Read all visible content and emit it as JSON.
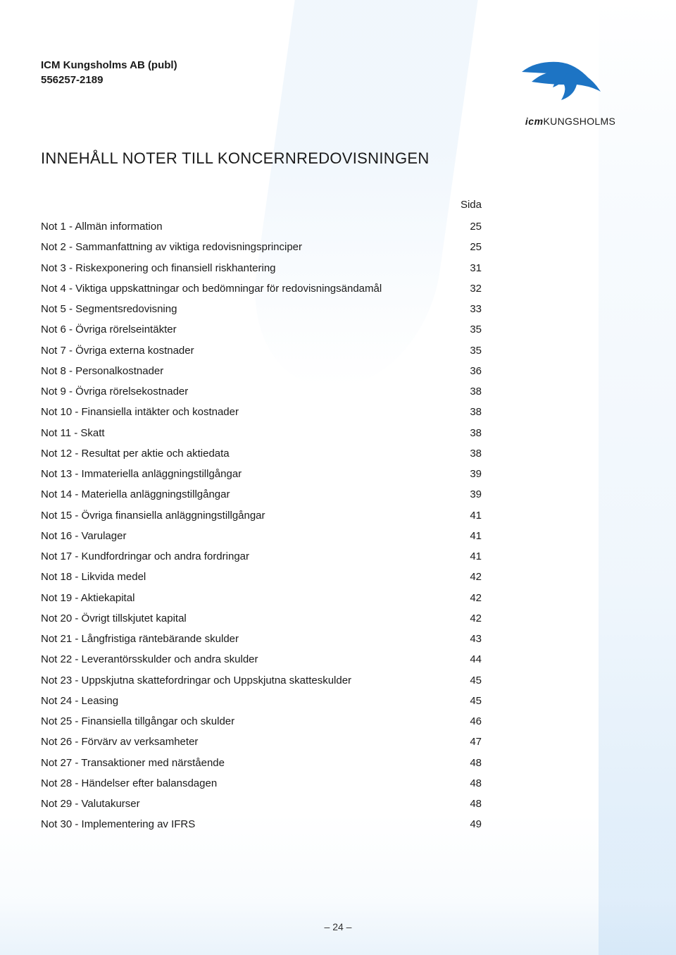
{
  "company": {
    "name": "ICM Kungsholms AB (publ)",
    "orgnr": "556257-2189"
  },
  "logo": {
    "text_em": "icm",
    "text_rest": "KUNGSHOLMS",
    "bird_fill": "#1d74c4",
    "bird_stroke": "#0b2a4a"
  },
  "title": "INNEHÅLL NOTER TILL KONCERNREDOVISNINGEN",
  "toc_header": "Sida",
  "toc": [
    {
      "label": "Not 1 - Allmän information",
      "page": "25"
    },
    {
      "label": "Not 2 - Sammanfattning av viktiga redovisningsprinciper",
      "page": "25"
    },
    {
      "label": "Not 3 - Riskexponering och finansiell riskhantering",
      "page": "31"
    },
    {
      "label": "Not 4 - Viktiga uppskattningar och bedömningar för redovisningsändamål",
      "page": "32"
    },
    {
      "label": "Not 5 - Segmentsredovisning",
      "page": "33"
    },
    {
      "label": "Not 6 - Övriga rörelseintäkter",
      "page": "35"
    },
    {
      "label": "Not 7 - Övriga externa kostnader",
      "page": "35"
    },
    {
      "label": "Not 8 - Personalkostnader",
      "page": "36"
    },
    {
      "label": "Not 9 - Övriga rörelsekostnader",
      "page": "38"
    },
    {
      "label": "Not 10 - Finansiella intäkter och kostnader",
      "page": "38"
    },
    {
      "label": "Not 11 - Skatt",
      "page": "38"
    },
    {
      "label": "Not 12 - Resultat per aktie och aktiedata",
      "page": "38"
    },
    {
      "label": "Not 13 - Immateriella anläggningstillgångar",
      "page": "39"
    },
    {
      "label": "Not 14 - Materiella anläggningstillgångar",
      "page": "39"
    },
    {
      "label": "Not 15 - Övriga finansiella anläggningstillgångar",
      "page": "41"
    },
    {
      "label": "Not 16 - Varulager",
      "page": "41"
    },
    {
      "label": "Not 17 - Kundfordringar och andra fordringar",
      "page": "41"
    },
    {
      "label": "Not 18 - Likvida medel",
      "page": "42"
    },
    {
      "label": "Not 19 - Aktiekapital",
      "page": "42"
    },
    {
      "label": "Not 20 - Övrigt tillskjutet kapital",
      "page": "42"
    },
    {
      "label": "Not 21 - Långfristiga räntebärande skulder",
      "page": "43"
    },
    {
      "label": "Not 22 - Leverantörsskulder och andra skulder",
      "page": "44"
    },
    {
      "label": "Not 23 - Uppskjutna skattefordringar och Uppskjutna skatteskulder",
      "page": "45"
    },
    {
      "label": "Not 24 - Leasing",
      "page": "45"
    },
    {
      "label": "Not 25 - Finansiella tillgångar och skulder",
      "page": "46"
    },
    {
      "label": "Not 26 - Förvärv av verksamheter",
      "page": "47"
    },
    {
      "label": "Not 27 - Transaktioner med närstående",
      "page": "48"
    },
    {
      "label": "Not 28 - Händelser efter balansdagen",
      "page": "48"
    },
    {
      "label": "Not 29 - Valutakurser",
      "page": "48"
    },
    {
      "label": "Not 30 - Implementering av IFRS",
      "page": "49"
    }
  ],
  "page_number": "– 24 –"
}
